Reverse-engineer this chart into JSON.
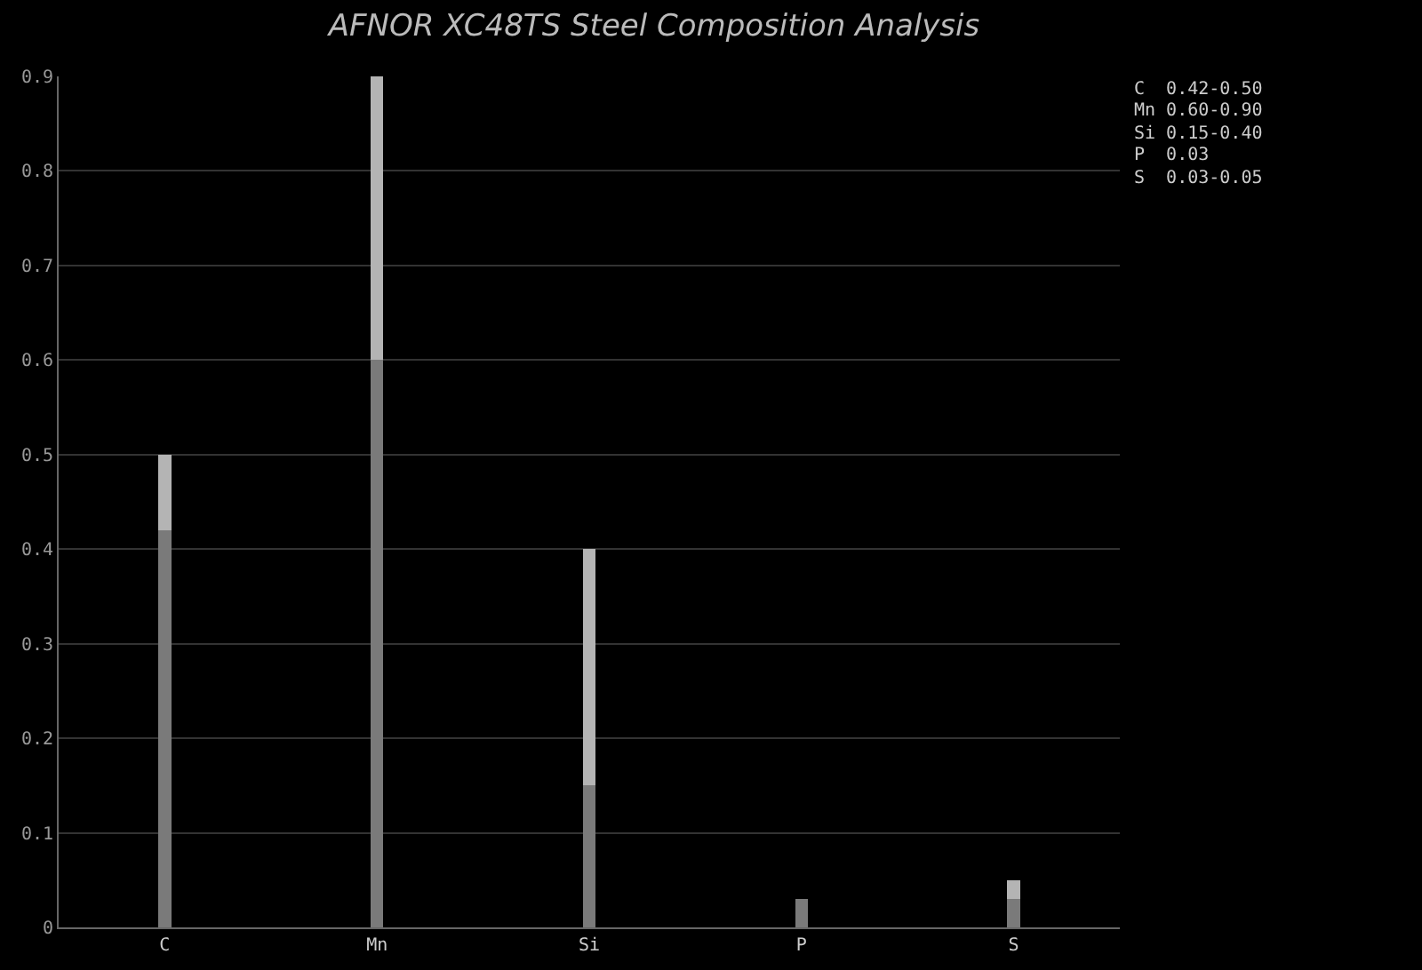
{
  "chart_data": {
    "type": "bar",
    "title": "AFNOR XC48TS Steel Composition Analysis",
    "stacked": true,
    "categories": [
      "C",
      "Mn",
      "Si",
      "P",
      "S"
    ],
    "series": [
      {
        "color": "#7a7a7a",
        "values": [
          0.42,
          0.6,
          0.15,
          0.03,
          0.03
        ]
      },
      {
        "color": "#b4b4b4",
        "values": [
          0.08,
          0.3,
          0.25,
          null,
          0.02
        ]
      }
    ],
    "ylim": [
      0,
      0.9
    ],
    "yticks": [
      0,
      0.1,
      0.2,
      0.3,
      0.4,
      0.5,
      0.6,
      0.7,
      0.8,
      0.9
    ],
    "grid": "y",
    "annotations": [
      "C  0.42-0.50",
      "Mn 0.60-0.90",
      "Si 0.15-0.40",
      "P  0.03",
      "S  0.03-0.05"
    ]
  }
}
